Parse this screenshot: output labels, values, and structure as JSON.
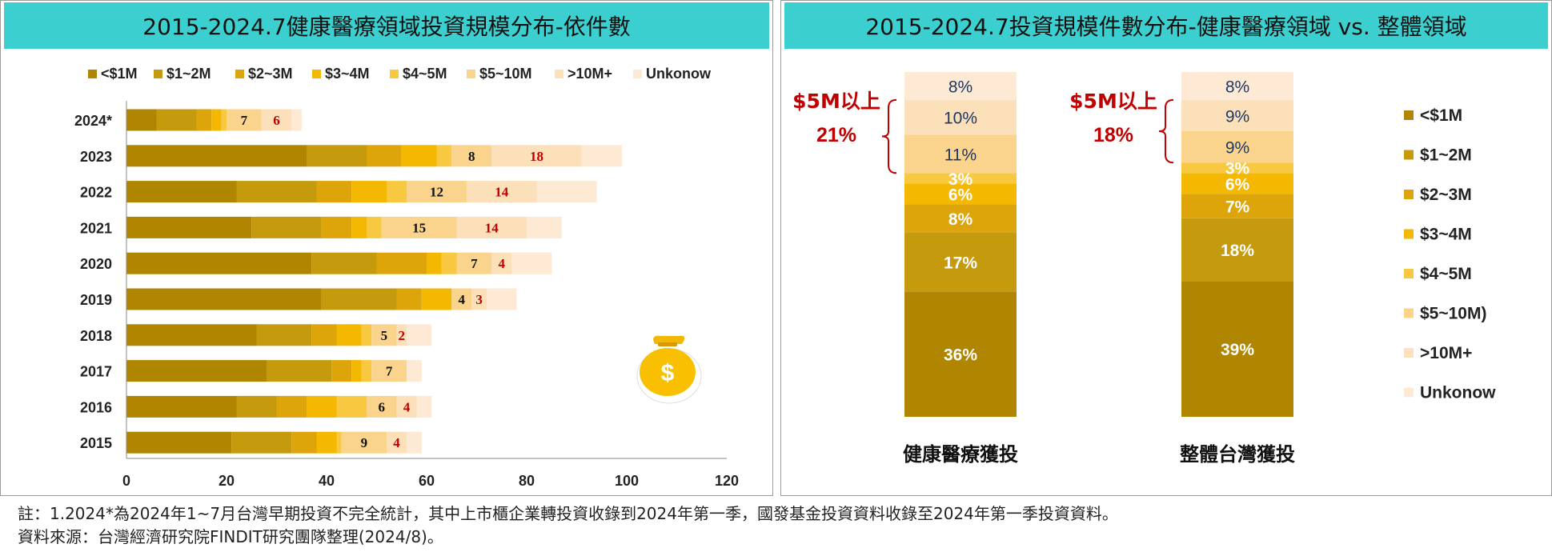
{
  "left_title": "2015-2024.7健康醫療領域投資規模分布-依件數",
  "right_title": "2015-2024.7投資規模件數分布-健康醫療領域 vs. 整體領域",
  "notes": [
    "註：1.2024*為2024年1~7月台灣早期投資不完全統計，其中上市櫃企業轉投資收錄到2024年第一季，國發基金投資資料收錄至2024年第一季投資資料。",
    "資料來源：台灣經濟研究院FINDIT研究團隊整理(2024/8)。"
  ],
  "colors": [
    "#b08600",
    "#c59a0c",
    "#dea50a",
    "#f4b800",
    "#f8c840",
    "#fad48c",
    "#fce0ba",
    "#fde9d4"
  ],
  "chart_data": [
    {
      "type": "bar",
      "orientation": "horizontal",
      "stacked": true,
      "legend_placement": "top",
      "categories": [
        "2024*",
        "2023",
        "2022",
        "2021",
        "2020",
        "2019",
        "2018",
        "2017",
        "2016",
        "2015"
      ],
      "series": [
        {
          "name": "<$1M",
          "values": [
            6,
            36,
            22,
            25,
            37,
            39,
            26,
            28,
            22,
            21
          ]
        },
        {
          "name": "$1~2M",
          "values": [
            8,
            12,
            16,
            14,
            13,
            15,
            11,
            13,
            8,
            12
          ]
        },
        {
          "name": "$2~3M",
          "values": [
            3,
            7,
            7,
            6,
            10,
            5,
            5,
            4,
            6,
            5
          ]
        },
        {
          "name": "$3~4M",
          "values": [
            2,
            7,
            7,
            3,
            3,
            6,
            5,
            2,
            6,
            4
          ]
        },
        {
          "name": "$4~5M",
          "values": [
            1,
            3,
            4,
            3,
            3,
            0,
            2,
            2,
            6,
            1
          ]
        },
        {
          "name": "$5~10M",
          "values": [
            7,
            8,
            12,
            15,
            7,
            4,
            5,
            7,
            6,
            9
          ]
        },
        {
          "name": ">10M+",
          "values": [
            6,
            18,
            14,
            14,
            4,
            3,
            2,
            0,
            4,
            4
          ]
        },
        {
          "name": "Unkonow",
          "values": [
            2,
            8,
            12,
            7,
            8,
            6,
            5,
            3,
            3,
            3
          ]
        }
      ],
      "data_labels": [
        {
          "category": "2024*",
          "series": "$5~10M",
          "text": "7"
        },
        {
          "category": "2024*",
          "series": ">10M+",
          "text": "6"
        },
        {
          "category": "2023",
          "series": "$5~10M",
          "text": "8"
        },
        {
          "category": "2023",
          "series": ">10M+",
          "text": "18"
        },
        {
          "category": "2022",
          "series": "$5~10M",
          "text": "12"
        },
        {
          "category": "2022",
          "series": ">10M+",
          "text": "14"
        },
        {
          "category": "2021",
          "series": "$5~10M",
          "text": "15"
        },
        {
          "category": "2021",
          "series": ">10M+",
          "text": "14"
        },
        {
          "category": "2020",
          "series": "$5~10M",
          "text": "7"
        },
        {
          "category": "2020",
          "series": ">10M+",
          "text": "4"
        },
        {
          "category": "2019",
          "series": "$5~10M",
          "text": "4"
        },
        {
          "category": "2019",
          "series": ">10M+",
          "text": "3"
        },
        {
          "category": "2018",
          "series": "$5~10M",
          "text": "5"
        },
        {
          "category": "2018",
          "series": ">10M+",
          "text": "2"
        },
        {
          "category": "2017",
          "series": "$5~10M",
          "text": "7"
        },
        {
          "category": "2016",
          "series": "$5~10M",
          "text": "6"
        },
        {
          "category": "2016",
          "series": ">10M+",
          "text": "4"
        },
        {
          "category": "2015",
          "series": "$5~10M",
          "text": "9"
        },
        {
          "category": "2015",
          "series": ">10M+",
          "text": "4"
        }
      ],
      "xlim": [
        0,
        120
      ],
      "xticks": [
        0,
        20,
        40,
        60,
        80,
        100,
        120
      ],
      "grid": false,
      "icon": "money-bag-icon"
    },
    {
      "type": "bar",
      "orientation": "vertical",
      "stacked": true,
      "normalized": "percent",
      "legend_placement": "right",
      "categories": [
        "健康醫療獲投",
        "整體台灣獲投"
      ],
      "series": [
        {
          "name": "<$1M",
          "values": [
            36,
            39
          ]
        },
        {
          "name": "$1~2M",
          "values": [
            17,
            18
          ]
        },
        {
          "name": "$2~3M",
          "values": [
            8,
            7
          ]
        },
        {
          "name": "$3~4M",
          "values": [
            6,
            6
          ]
        },
        {
          "name": "$4~5M",
          "values": [
            3,
            3
          ]
        },
        {
          "name": "$5~10M)",
          "values": [
            11,
            9
          ]
        },
        {
          "name": ">10M+",
          "values": [
            10,
            9
          ]
        },
        {
          "name": "Unkonow",
          "values": [
            8,
            8
          ]
        }
      ],
      "value_suffix": "%",
      "annotations": [
        {
          "category": "健康醫療獲投",
          "label": "$5M以上",
          "value": "21%"
        },
        {
          "category": "整體台灣獲投",
          "label": "$5M以上",
          "value": "18%"
        }
      ],
      "grid": false
    }
  ]
}
